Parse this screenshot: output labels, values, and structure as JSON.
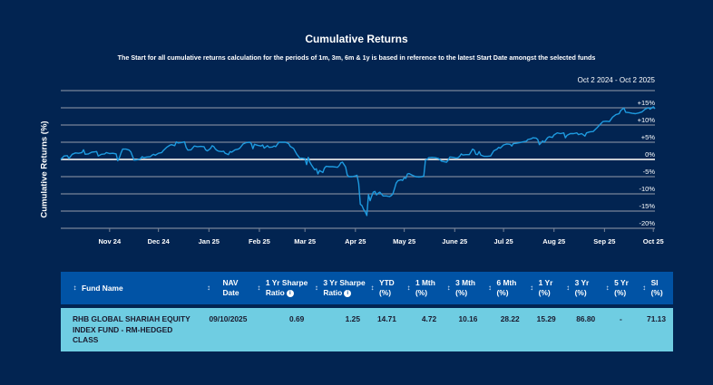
{
  "chart_data": {
    "type": "line",
    "title": "Cumulative Returns",
    "subtitle": "The Start for all cumulative returns calculation for the periods of 1m, 3m, 6m & 1y is based in reference to the latest Start Date amongst the selected funds",
    "date_range": "Oct 2 2024 - Oct 2 2025",
    "xlabel": "",
    "ylabel": "Cumulative Returns (%)",
    "ylim": [
      -20,
      20
    ],
    "yticks": [
      {
        "value": 15,
        "label": "+15%"
      },
      {
        "value": 10,
        "label": "+10%"
      },
      {
        "value": 5,
        "label": "+5%"
      },
      {
        "value": 0,
        "label": "0%"
      },
      {
        "value": -5,
        "label": "-5%"
      },
      {
        "value": -10,
        "label": "-10%"
      },
      {
        "value": -15,
        "label": "-15%"
      },
      {
        "value": -20,
        "label": "-20%"
      }
    ],
    "xlim": [
      0,
      365
    ],
    "xticks": [
      {
        "day": 30,
        "label": "Nov 24"
      },
      {
        "day": 60,
        "label": "Dec 24"
      },
      {
        "day": 91,
        "label": "Jan 25"
      },
      {
        "day": 122,
        "label": "Feb 25"
      },
      {
        "day": 150,
        "label": "Mar 25"
      },
      {
        "day": 181,
        "label": "Apr 25"
      },
      {
        "day": 211,
        "label": "May 25"
      },
      {
        "day": 242,
        "label": "June 25"
      },
      {
        "day": 272,
        "label": "Jul 25"
      },
      {
        "day": 303,
        "label": "Aug 25"
      },
      {
        "day": 334,
        "label": "Sep 25"
      },
      {
        "day": 364,
        "label": "Oct 25"
      }
    ],
    "grid": true,
    "legend": "none",
    "series": [
      {
        "name": "RHB GLOBAL SHARIAH EQUITY INDEX FUND - RM-HEDGED CLASS",
        "color": "#1e9be0",
        "points": [
          [
            0,
            0.0
          ],
          [
            2,
            1.0
          ],
          [
            4,
            1.1
          ],
          [
            5,
            0.3
          ],
          [
            7,
            1.5
          ],
          [
            9,
            1.9
          ],
          [
            11,
            1.8
          ],
          [
            13,
            2.0
          ],
          [
            14,
            2.8
          ],
          [
            15,
            1.5
          ],
          [
            17,
            1.6
          ],
          [
            19,
            2.1
          ],
          [
            21,
            2.2
          ],
          [
            22,
            2.3
          ],
          [
            23,
            1.0
          ],
          [
            25,
            1.5
          ],
          [
            27,
            1.6
          ],
          [
            28,
            2.0
          ],
          [
            30,
            1.7
          ],
          [
            32,
            1.8
          ],
          [
            34,
            1.6
          ],
          [
            35,
            -0.4
          ],
          [
            36,
            0.5
          ],
          [
            37,
            1.9
          ],
          [
            38,
            3.0
          ],
          [
            40,
            3.0
          ],
          [
            42,
            2.7
          ],
          [
            43,
            2.2
          ],
          [
            44,
            1.0
          ],
          [
            45,
            -0.2
          ],
          [
            47,
            -0.1
          ],
          [
            49,
            0.2
          ],
          [
            50,
            0.8
          ],
          [
            51,
            0.5
          ],
          [
            53,
            0.7
          ],
          [
            55,
            0.8
          ],
          [
            56,
            1.2
          ],
          [
            57,
            1.5
          ],
          [
            58,
            1.2
          ],
          [
            60,
            1.8
          ],
          [
            62,
            2.0
          ],
          [
            63,
            2.6
          ],
          [
            65,
            3.5
          ],
          [
            67,
            4.1
          ],
          [
            68,
            4.3
          ],
          [
            70,
            4.0
          ],
          [
            71,
            5.1
          ],
          [
            72,
            4.8
          ],
          [
            74,
            4.9
          ],
          [
            76,
            5.1
          ],
          [
            77,
            3.5
          ],
          [
            78,
            2.7
          ],
          [
            80,
            2.8
          ],
          [
            82,
            3.9
          ],
          [
            84,
            3.7
          ],
          [
            86,
            3.8
          ],
          [
            88,
            3.7
          ],
          [
            89,
            2.8
          ],
          [
            90,
            2.5
          ],
          [
            91,
            2.8
          ],
          [
            92,
            3.2
          ],
          [
            93,
            4.0
          ],
          [
            94,
            3.7
          ],
          [
            95,
            3.0
          ],
          [
            96,
            2.6
          ],
          [
            97,
            2.4
          ],
          [
            99,
            2.3
          ],
          [
            100,
            2.4
          ],
          [
            101,
            1.8
          ],
          [
            102,
            1.6
          ],
          [
            103,
            1.4
          ],
          [
            104,
            2.3
          ],
          [
            105,
            2.1
          ],
          [
            107,
            2.8
          ],
          [
            109,
            3.0
          ],
          [
            110,
            3.3
          ],
          [
            112,
            4.5
          ],
          [
            114,
            4.9
          ],
          [
            116,
            5.0
          ],
          [
            117,
            4.6
          ],
          [
            118,
            3.1
          ],
          [
            119,
            4.4
          ],
          [
            121,
            4.1
          ],
          [
            123,
            3.9
          ],
          [
            124,
            4.2
          ],
          [
            125,
            3.3
          ],
          [
            127,
            4.0
          ],
          [
            128,
            3.5
          ],
          [
            130,
            3.6
          ],
          [
            131,
            3.9
          ],
          [
            132,
            3.7
          ],
          [
            134,
            5.0
          ],
          [
            136,
            5.0
          ],
          [
            138,
            5.0
          ],
          [
            140,
            4.6
          ],
          [
            141,
            3.8
          ],
          [
            143,
            3.2
          ],
          [
            145,
            1.5
          ],
          [
            147,
            0.3
          ],
          [
            148,
            0.4
          ],
          [
            150,
            0.2
          ],
          [
            151,
            -1.5
          ],
          [
            152,
            0.6
          ],
          [
            153,
            -0.8
          ],
          [
            154,
            -1.6
          ],
          [
            156,
            -3.0
          ],
          [
            157,
            -2.7
          ],
          [
            158,
            -4.2
          ],
          [
            159,
            -3.2
          ],
          [
            160,
            -3.5
          ],
          [
            161,
            -3.8
          ],
          [
            162,
            -2.5
          ],
          [
            163,
            -2.0
          ],
          [
            165,
            -2.1
          ],
          [
            167,
            -2.1
          ],
          [
            169,
            -2.2
          ],
          [
            170,
            -2.3
          ],
          [
            171,
            -1.8
          ],
          [
            172,
            -1.0
          ],
          [
            173,
            -0.8
          ],
          [
            175,
            -2.2
          ],
          [
            176,
            -4.5
          ],
          [
            177,
            -5.0
          ],
          [
            179,
            -5.0
          ],
          [
            181,
            -4.8
          ],
          [
            182,
            -4.6
          ],
          [
            183,
            -7.0
          ],
          [
            184,
            -13.0
          ],
          [
            185,
            -13.4
          ],
          [
            186,
            -14.5
          ],
          [
            187,
            -15.2
          ],
          [
            188,
            -16.3
          ],
          [
            189,
            -10.2
          ],
          [
            190,
            -12.0
          ],
          [
            191,
            -10.6
          ],
          [
            192,
            -9.5
          ],
          [
            193,
            -9.3
          ],
          [
            194,
            -10.3
          ],
          [
            195,
            -9.8
          ],
          [
            196,
            -9.5
          ],
          [
            198,
            -10.6
          ],
          [
            200,
            -10.6
          ],
          [
            202,
            -10.8
          ],
          [
            203,
            -10.5
          ],
          [
            204,
            -10.0
          ],
          [
            205,
            -8.5
          ],
          [
            206,
            -6.9
          ],
          [
            207,
            -6.2
          ],
          [
            209,
            -5.9
          ],
          [
            210,
            -6.1
          ],
          [
            211,
            -5.3
          ],
          [
            212,
            -5.5
          ],
          [
            213,
            -4.2
          ],
          [
            214,
            -4.1
          ],
          [
            216,
            -4.6
          ],
          [
            218,
            -5.0
          ],
          [
            220,
            -5.1
          ],
          [
            222,
            -5.0
          ],
          [
            223,
            -4.8
          ],
          [
            224,
            -0.2
          ],
          [
            225,
            0.0
          ],
          [
            226,
            0.5
          ],
          [
            228,
            0.6
          ],
          [
            230,
            0.5
          ],
          [
            232,
            0.3
          ],
          [
            234,
            -0.5
          ],
          [
            236,
            -0.7
          ],
          [
            237,
            -0.8
          ],
          [
            238,
            -0.2
          ],
          [
            239,
            0.7
          ],
          [
            241,
            0.6
          ],
          [
            243,
            0.4
          ],
          [
            244,
            0.5
          ],
          [
            245,
            0.9
          ],
          [
            246,
            1.6
          ],
          [
            247,
            1.3
          ],
          [
            249,
            1.4
          ],
          [
            251,
            1.4
          ],
          [
            253,
            3.0
          ],
          [
            254,
            2.7
          ],
          [
            255,
            1.5
          ],
          [
            256,
            1.4
          ],
          [
            257,
            2.3
          ],
          [
            258,
            1.3
          ],
          [
            260,
            0.9
          ],
          [
            262,
            0.9
          ],
          [
            264,
            1.0
          ],
          [
            266,
            2.5
          ],
          [
            268,
            3.0
          ],
          [
            269,
            3.5
          ],
          [
            270,
            3.3
          ],
          [
            272,
            4.2
          ],
          [
            274,
            4.5
          ],
          [
            276,
            4.4
          ],
          [
            277,
            3.9
          ],
          [
            278,
            4.6
          ],
          [
            280,
            4.7
          ],
          [
            282,
            4.9
          ],
          [
            284,
            5.1
          ],
          [
            286,
            5.3
          ],
          [
            287,
            5.8
          ],
          [
            289,
            6.0
          ],
          [
            290,
            6.3
          ],
          [
            292,
            6.2
          ],
          [
            293,
            5.8
          ],
          [
            294,
            4.3
          ],
          [
            295,
            4.8
          ],
          [
            296,
            5.4
          ],
          [
            297,
            5.0
          ],
          [
            299,
            6.3
          ],
          [
            300,
            6.6
          ],
          [
            302,
            6.4
          ],
          [
            303,
            7.1
          ],
          [
            305,
            7.7
          ],
          [
            307,
            7.5
          ],
          [
            309,
            7.7
          ],
          [
            310,
            6.3
          ],
          [
            311,
            7.0
          ],
          [
            313,
            7.5
          ],
          [
            315,
            7.5
          ],
          [
            317,
            7.7
          ],
          [
            318,
            7.2
          ],
          [
            320,
            7.5
          ],
          [
            322,
            6.8
          ],
          [
            323,
            7.7
          ],
          [
            325,
            8.0
          ],
          [
            327,
            8.1
          ],
          [
            329,
            9.0
          ],
          [
            331,
            10.0
          ],
          [
            333,
            11.0
          ],
          [
            335,
            11.1
          ],
          [
            337,
            11.0
          ],
          [
            339,
            12.3
          ],
          [
            341,
            13.0
          ],
          [
            343,
            13.3
          ],
          [
            344,
            14.2
          ],
          [
            345,
            14.6
          ],
          [
            346,
            14.9
          ],
          [
            347,
            13.7
          ],
          [
            349,
            13.6
          ],
          [
            351,
            13.4
          ],
          [
            353,
            13.3
          ],
          [
            355,
            13.5
          ],
          [
            357,
            13.8
          ],
          [
            359,
            14.6
          ],
          [
            361,
            15.0
          ],
          [
            362,
            14.6
          ],
          [
            364,
            15.3
          ],
          [
            365,
            14.7
          ]
        ]
      }
    ]
  },
  "table": {
    "headers": [
      {
        "label_line1": "Fund Name",
        "label_line2": "",
        "info": false
      },
      {
        "label_line1": "NAV",
        "label_line2": "Date",
        "info": false
      },
      {
        "label_line1": "1 Yr Sharpe",
        "label_line2": "Ratio",
        "info": true
      },
      {
        "label_line1": "3 Yr Sharpe",
        "label_line2": "Ratio",
        "info": true
      },
      {
        "label_line1": "YTD",
        "label_line2": "(%)",
        "info": false
      },
      {
        "label_line1": "1 Mth",
        "label_line2": "(%)",
        "info": false
      },
      {
        "label_line1": "3 Mth",
        "label_line2": "(%)",
        "info": false
      },
      {
        "label_line1": "6 Mth",
        "label_line2": "(%)",
        "info": false
      },
      {
        "label_line1": "1 Yr",
        "label_line2": "(%)",
        "info": false
      },
      {
        "label_line1": "3 Yr",
        "label_line2": "(%)",
        "info": false
      },
      {
        "label_line1": "5 Yr",
        "label_line2": "(%)",
        "info": false
      },
      {
        "label_line1": "SI",
        "label_line2": "(%)",
        "info": false
      }
    ],
    "sort_icon": "⇕",
    "info_icon": "i",
    "rows": [
      {
        "fund_name": "RHB GLOBAL SHARIAH EQUITY INDEX FUND - RM-HEDGED CLASS",
        "nav_date": "09/10/2025",
        "sharpe_1yr": "0.69",
        "sharpe_3yr": "1.25",
        "ytd": "14.71",
        "mth_1": "4.72",
        "mth_3": "10.16",
        "mth_6": "28.22",
        "yr_1": "15.29",
        "yr_3": "86.80",
        "yr_5": "-",
        "si": "71.13"
      }
    ]
  },
  "colors": {
    "background": "#022451",
    "line": "#1e9be0",
    "header_bg": "#0153a5",
    "row_bg": "#6fcde2",
    "gridline": "#7a8599",
    "zero_line": "#c8ccd2"
  }
}
